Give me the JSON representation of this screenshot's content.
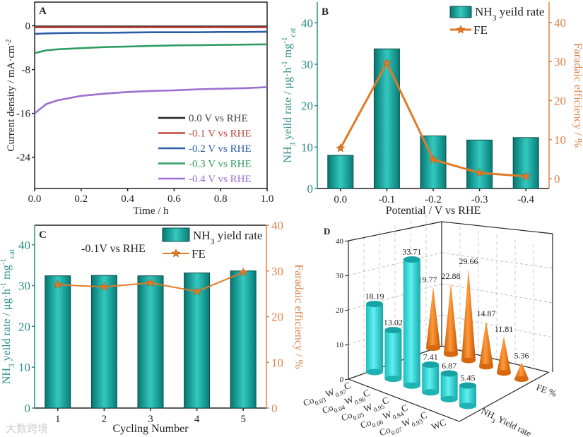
{
  "figure": {
    "watermark": "大数跨境"
  },
  "chart_data": [
    {
      "panel": "A",
      "type": "line",
      "xlabel": "Time / h",
      "ylabel": [
        {
          "t": "Current density / mA·cm"
        },
        {
          "t": "-2",
          "sup": true
        }
      ],
      "xlim": [
        0,
        1
      ],
      "ylim": [
        -29.7,
        4.3
      ],
      "xticks": [
        "0.0",
        "0.2",
        "0.4",
        "0.6",
        "0.8",
        "1.0"
      ],
      "yticks": [
        0,
        -8,
        -16,
        -24
      ],
      "x": [
        0,
        0.05,
        0.1,
        0.2,
        0.3,
        0.4,
        0.5,
        0.6,
        0.7,
        0.8,
        0.9,
        1.0
      ],
      "series": [
        {
          "name": "0.0 V vs RHE",
          "color": "#222222",
          "values": [
            -0.15,
            -0.15,
            -0.15,
            -0.15,
            -0.15,
            -0.15,
            -0.15,
            -0.15,
            -0.15,
            -0.15,
            -0.15,
            -0.15
          ]
        },
        {
          "name": "-0.1 V vs RHE",
          "color": "#c0463f",
          "values": [
            -0.3,
            -0.3,
            -0.3,
            -0.3,
            -0.3,
            -0.3,
            -0.3,
            -0.3,
            -0.3,
            -0.3,
            -0.3,
            -0.3
          ]
        },
        {
          "name": "-0.2 V vs RHE",
          "color": "#2b5ea8",
          "values": [
            -1.5,
            -1.4,
            -1.35,
            -1.3,
            -1.3,
            -1.25,
            -1.2,
            -1.2,
            -1.2,
            -1.15,
            -1.15,
            -1.1
          ]
        },
        {
          "name": "-0.3 V vs RHE",
          "color": "#2f9d62",
          "values": [
            -5.0,
            -4.5,
            -4.3,
            -4.1,
            -3.9,
            -3.8,
            -3.7,
            -3.6,
            -3.55,
            -3.5,
            -3.45,
            -3.4
          ]
        },
        {
          "name": "-0.4 V vs RHE",
          "color": "#9c6fd1",
          "values": [
            -16.0,
            -14.3,
            -13.6,
            -12.8,
            -12.4,
            -12.1,
            -11.9,
            -11.8,
            -11.6,
            -11.5,
            -11.4,
            -11.2
          ]
        }
      ],
      "legend": "bottom-right"
    },
    {
      "panel": "B",
      "type": "bar+line",
      "xlabel": "Potential / V vs RHE",
      "ylabel_left": [
        {
          "t": "NH"
        },
        {
          "t": "3",
          "sub": true
        },
        {
          "t": " yeild rate / μg·h"
        },
        {
          "t": "-1",
          "sup": true
        },
        {
          "t": " mg"
        },
        {
          "t": "-1",
          "sup": true
        },
        {
          "t": "cat",
          "sub": true
        }
      ],
      "ylabel_right": "Faradaic efficiency / %",
      "categories": [
        "0.0",
        "-0.1",
        "-0.2",
        "-0.3",
        "-0.4"
      ],
      "ylim_left": [
        0,
        45
      ],
      "ylim_right": [
        -2.5,
        45.2
      ],
      "yticks_left": [
        0,
        10,
        20,
        30,
        40
      ],
      "yticks_right": [
        0,
        10,
        20,
        30,
        40
      ],
      "series": [
        {
          "name": [
            {
              "t": "NH"
            },
            {
              "t": "3",
              "sub": true
            },
            {
              "t": " yeild rate"
            }
          ],
          "axis": "left",
          "color": "#1aa9a1",
          "values": [
            8.0,
            33.71,
            12.7,
            11.7,
            12.3
          ]
        },
        {
          "name": "FE",
          "axis": "right",
          "color": "#e07b27",
          "values": [
            7.8,
            29.66,
            4.9,
            1.5,
            0.6
          ]
        }
      ],
      "legend": "top-right"
    },
    {
      "panel": "C",
      "type": "bar+line",
      "annotation": "-0.1V vs RHE",
      "xlabel": "Cycling Number",
      "ylabel_left": [
        {
          "t": "NH"
        },
        {
          "t": "3",
          "sub": true
        },
        {
          "t": " yeild rate / μg·h"
        },
        {
          "t": "-1",
          "sup": true
        },
        {
          "t": " mg"
        },
        {
          "t": "-1",
          "sup": true
        },
        {
          "t": "cat",
          "sub": true
        }
      ],
      "ylabel_right": "Faradaic efficiency / %",
      "categories": [
        "1",
        "2",
        "3",
        "4",
        "5"
      ],
      "ylim_left": [
        0,
        44.8
      ],
      "ylim_right": [
        0,
        40
      ],
      "yticks_left": [
        0,
        10,
        20,
        30,
        40
      ],
      "yticks_right": [
        0,
        10,
        20,
        30,
        40
      ],
      "series": [
        {
          "name": [
            {
              "t": "NH"
            },
            {
              "t": "3",
              "sub": true
            },
            {
              "t": " yield rate"
            }
          ],
          "axis": "left",
          "color": "#1aa9a1",
          "values": [
            32.4,
            32.5,
            32.4,
            33.1,
            33.6
          ]
        },
        {
          "name": "FE",
          "axis": "right",
          "color": "#e07b27",
          "values": [
            27.0,
            26.5,
            27.4,
            25.5,
            29.7
          ]
        }
      ],
      "legend": "top-right"
    },
    {
      "panel": "D",
      "type": "bar3d",
      "categories": [
        [
          {
            "t": "Co"
          },
          {
            "t": "0.03",
            "sub": true
          },
          {
            "t": " W"
          },
          {
            "t": "0.97",
            "sub": true
          },
          {
            "t": "C"
          }
        ],
        [
          {
            "t": "Co"
          },
          {
            "t": "0.04",
            "sub": true
          },
          {
            "t": " W"
          },
          {
            "t": "0.96",
            "sub": true
          },
          {
            "t": "C"
          }
        ],
        [
          {
            "t": "Co"
          },
          {
            "t": "0.05",
            "sub": true
          },
          {
            "t": " W"
          },
          {
            "t": "0.95",
            "sub": true
          },
          {
            "t": "C"
          }
        ],
        [
          {
            "t": "Co"
          },
          {
            "t": "0.06",
            "sub": true
          },
          {
            "t": " W"
          },
          {
            "t": "0.94",
            "sub": true
          },
          {
            "t": "C"
          }
        ],
        [
          {
            "t": "Co"
          },
          {
            "t": "0.07",
            "sub": true
          },
          {
            "t": " W"
          },
          {
            "t": "0.93",
            "sub": true
          },
          {
            "t": "C"
          }
        ],
        [
          {
            "t": "WC"
          }
        ]
      ],
      "zlim": [
        0,
        40
      ],
      "zticks": [
        0,
        10,
        20,
        30,
        40
      ],
      "series": [
        {
          "name": [
            {
              "t": "NH"
            },
            {
              "t": "3",
              "sub": true
            },
            {
              "t": " Yield rate"
            }
          ],
          "color": "#34dede",
          "values": [
            18.19,
            13.02,
            33.71,
            7.41,
            6.87,
            5.45
          ],
          "labels": [
            "18.19",
            "13.02",
            "33.71",
            "7.41",
            "6.87",
            "5.45"
          ]
        },
        {
          "name": [
            {
              "t": "FE %"
            }
          ],
          "color": "#f07a12",
          "values": [
            19.77,
            22.88,
            29.66,
            14.87,
            11.81,
            5.36
          ],
          "labels": [
            "19.77",
            "22.88",
            "29.66",
            "14.87",
            "11.81",
            "5.36"
          ]
        }
      ]
    }
  ],
  "panel_letters": [
    "A",
    "B",
    "C",
    "D"
  ]
}
